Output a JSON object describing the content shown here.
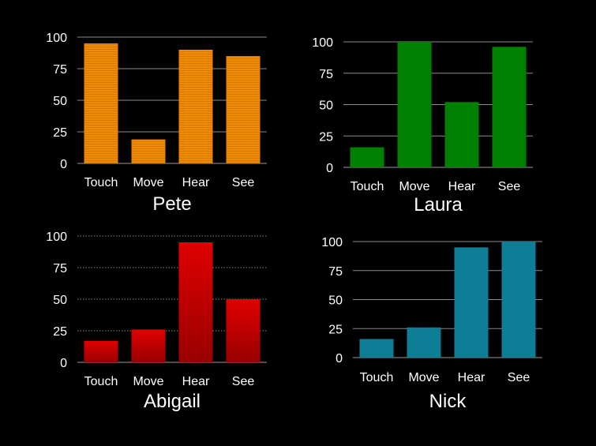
{
  "chart_data": [
    {
      "type": "bar",
      "title": "Pete",
      "categories": [
        "Touch",
        "Move",
        "Hear",
        "See"
      ],
      "values": [
        95,
        19,
        90,
        85
      ],
      "ylim": [
        0,
        100
      ],
      "yticks": [
        0,
        25,
        50,
        75,
        100
      ],
      "grid": "solid",
      "color": "#F08A00"
    },
    {
      "type": "bar",
      "title": "Laura",
      "categories": [
        "Touch",
        "Move",
        "Hear",
        "See"
      ],
      "values": [
        16,
        100,
        52,
        96
      ],
      "ylim": [
        0,
        100
      ],
      "yticks": [
        0,
        25,
        50,
        75,
        100
      ],
      "grid": "solid",
      "color": "#008000"
    },
    {
      "type": "bar",
      "title": "Abigail",
      "categories": [
        "Touch",
        "Move",
        "Hear",
        "See"
      ],
      "values": [
        17,
        26,
        95,
        50
      ],
      "ylim": [
        0,
        100
      ],
      "yticks": [
        0,
        25,
        50,
        75,
        100
      ],
      "grid": "dotted",
      "color": "#D40000"
    },
    {
      "type": "bar",
      "title": "Nick",
      "categories": [
        "Touch",
        "Move",
        "Hear",
        "See"
      ],
      "values": [
        16,
        26,
        95,
        100
      ],
      "ylim": [
        0,
        100
      ],
      "yticks": [
        0,
        25,
        50,
        75,
        100
      ],
      "grid": "solid",
      "color": "#0E7E96"
    }
  ]
}
